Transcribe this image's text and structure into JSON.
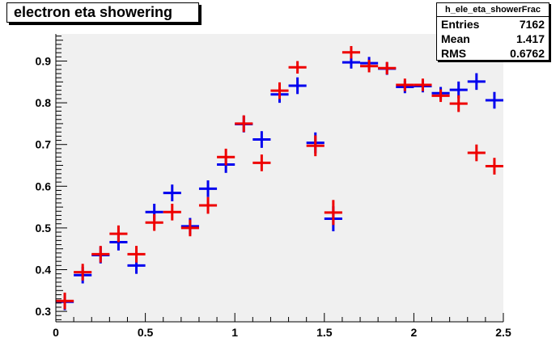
{
  "title": "electron eta showering",
  "stats": {
    "name": "h_ele_eta_showerFrac",
    "rows": [
      {
        "label": "Entries",
        "value": "7162"
      },
      {
        "label": "Mean",
        "value": "1.417"
      },
      {
        "label": "RMS",
        "value": "0.6762"
      }
    ]
  },
  "colors": {
    "frame_bg": "#f0f0f0",
    "series_blue": "#0000ee",
    "series_red": "#ee0000"
  },
  "chart_data": {
    "type": "scatter",
    "title": "electron eta showering",
    "xlabel": "",
    "ylabel": "",
    "xlim": [
      0,
      2.5
    ],
    "ylim": [
      0.275,
      0.965
    ],
    "x_ticks": [
      "0",
      "0.5",
      "1",
      "1.5",
      "2",
      "2.5"
    ],
    "x_tick_values": [
      0,
      0.5,
      1,
      1.5,
      2,
      2.5
    ],
    "y_ticks": [
      "0.3",
      "0.4",
      "0.5",
      "0.6",
      "0.7",
      "0.8",
      "0.9"
    ],
    "y_tick_values": [
      0.3,
      0.4,
      0.5,
      0.6,
      0.7,
      0.8,
      0.9
    ],
    "bin_half_width": 0.05,
    "x": [
      0.05,
      0.15,
      0.25,
      0.35,
      0.45,
      0.55,
      0.65,
      0.75,
      0.85,
      0.95,
      1.05,
      1.15,
      1.25,
      1.35,
      1.45,
      1.55,
      1.65,
      1.75,
      1.85,
      1.95,
      2.05,
      2.15,
      2.25,
      2.35,
      2.45
    ],
    "series": [
      {
        "color": "#0000ee",
        "values": [
          0.323,
          0.387,
          0.435,
          0.466,
          0.41,
          0.538,
          0.584,
          0.504,
          0.594,
          0.652,
          0.749,
          0.712,
          0.82,
          0.841,
          0.704,
          0.522,
          0.897,
          0.895,
          0.882,
          0.838,
          0.84,
          0.823,
          0.831,
          0.851,
          0.806
        ],
        "errors": [
          0.02,
          0.02,
          0.02,
          0.02,
          0.02,
          0.02,
          0.02,
          0.02,
          0.02,
          0.02,
          0.02,
          0.02,
          0.02,
          0.02,
          0.025,
          0.03,
          0.015,
          0.015,
          0.015,
          0.015,
          0.015,
          0.015,
          0.02,
          0.02,
          0.02
        ]
      },
      {
        "color": "#ee0000",
        "values": [
          0.325,
          0.394,
          0.437,
          0.486,
          0.437,
          0.513,
          0.538,
          0.5,
          0.554,
          0.67,
          0.75,
          0.656,
          0.829,
          0.885,
          0.697,
          0.537,
          0.921,
          0.888,
          0.883,
          0.843,
          0.843,
          0.817,
          0.798,
          0.68,
          0.648
        ],
        "errors": [
          0.02,
          0.02,
          0.02,
          0.02,
          0.02,
          0.02,
          0.02,
          0.02,
          0.02,
          0.02,
          0.02,
          0.02,
          0.02,
          0.015,
          0.025,
          0.03,
          0.015,
          0.015,
          0.015,
          0.015,
          0.015,
          0.015,
          0.02,
          0.02,
          0.02
        ]
      }
    ],
    "grid": false,
    "legend": "none"
  }
}
